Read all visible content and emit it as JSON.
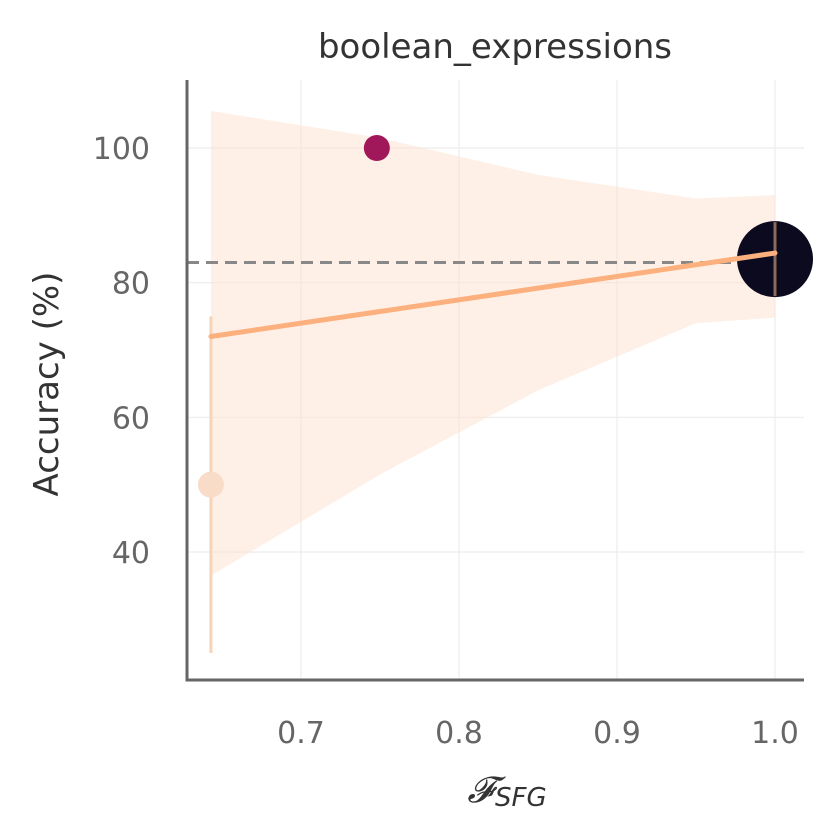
{
  "chart_data": {
    "type": "scatter",
    "title": "boolean_expressions",
    "xlabel": "𝓕",
    "xlabel_subscript": "SFG",
    "ylabel": "Accuracy (%)",
    "xlim": [
      0.625,
      1.02
    ],
    "ylim": [
      21,
      110
    ],
    "xticks": [
      0.7,
      0.8,
      0.9,
      1.0
    ],
    "xtick_labels": [
      "0.7",
      "0.8",
      "0.9",
      "1.0"
    ],
    "yticks": [
      40,
      60,
      80,
      100
    ],
    "ytick_labels": [
      "40",
      "60",
      "80",
      "100"
    ],
    "grid": true,
    "reference_line": {
      "y": 83,
      "style": "dashed",
      "color": "#888888"
    },
    "points": [
      {
        "x": 0.643,
        "y": 50,
        "size": "small",
        "color": "#f8dcc8",
        "err_low": 25,
        "err_high": 75,
        "err_color": "#f7d3b8"
      },
      {
        "x": 0.748,
        "y": 100,
        "size": "small",
        "color": "#a0185a"
      },
      {
        "x": 1.0,
        "y": 83.5,
        "size": "large",
        "color": "#0c0a1f",
        "err_low": 78,
        "err_high": 89,
        "err_color": "#8a6a5a"
      }
    ],
    "regression": {
      "x": [
        0.643,
        1.0
      ],
      "y": [
        72,
        84.4
      ],
      "color": "#fcb07e",
      "ci_color": "#fde4d2",
      "ci_upper": [
        [
          0.643,
          105.5
        ],
        [
          0.75,
          101.5
        ],
        [
          0.85,
          96
        ],
        [
          0.95,
          92.5
        ],
        [
          1.0,
          93
        ]
      ],
      "ci_lower": [
        [
          1.0,
          74.8
        ],
        [
          0.95,
          74
        ],
        [
          0.85,
          64
        ],
        [
          0.75,
          51.5
        ],
        [
          0.643,
          36.5
        ]
      ]
    },
    "legend": "none"
  }
}
